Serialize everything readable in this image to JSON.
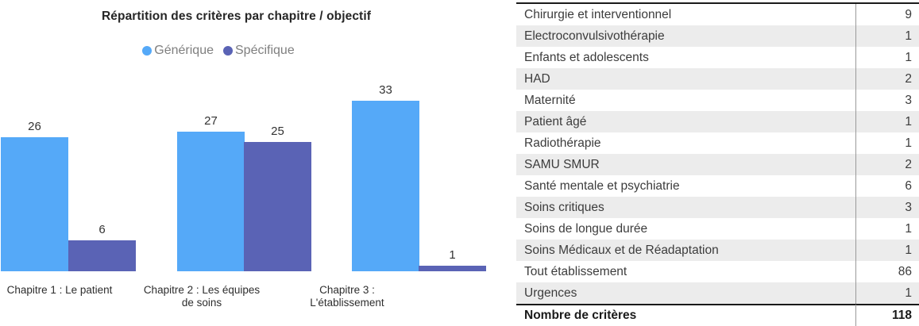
{
  "colors": {
    "generic_bar": "#55A9F8",
    "specific_bar": "#5A63B5",
    "row_alt": "#ECECEC",
    "table_border": "#1A1A1A",
    "column_divider": "#9A9A9A",
    "legend_text": "#7F7F7F"
  },
  "chart_data": [
    {
      "type": "bar",
      "title": "Répartition des critères par chapitre / objectif",
      "categories": [
        "Chapitre 1 : Le patient",
        "Chapitre 2 : Les équipes de soins",
        "Chapitre 3 : L'établissement"
      ],
      "category_lines": [
        [
          "Chapitre 1 : Le patient"
        ],
        [
          "Chapitre 2 : Les équipes",
          "de soins"
        ],
        [
          "Chapitre 3 :",
          "L'établissement"
        ]
      ],
      "series": [
        {
          "name": "Générique",
          "color": "#55A9F8",
          "values": [
            26,
            27,
            33
          ]
        },
        {
          "name": "Spécifique",
          "color": "#5A63B5",
          "values": [
            6,
            25,
            1
          ]
        }
      ],
      "legend_position": "top",
      "grid": false,
      "data_labels": true,
      "ylim": [
        0,
        35
      ],
      "xlabel": "",
      "ylabel": ""
    },
    {
      "type": "table",
      "rows": [
        {
          "label": "Chirurgie et interventionnel",
          "value": 9
        },
        {
          "label": "Electroconvulsivothérapie",
          "value": 1
        },
        {
          "label": "Enfants et adolescents",
          "value": 1
        },
        {
          "label": "HAD",
          "value": 2
        },
        {
          "label": "Maternité",
          "value": 3
        },
        {
          "label": "Patient âgé",
          "value": 1
        },
        {
          "label": "Radiothérapie",
          "value": 1
        },
        {
          "label": "SAMU SMUR",
          "value": 2
        },
        {
          "label": "Santé mentale et psychiatrie",
          "value": 6
        },
        {
          "label": "Soins critiques",
          "value": 3
        },
        {
          "label": "Soins de longue durée",
          "value": 1
        },
        {
          "label": "Soins Médicaux et de Réadaptation",
          "value": 1
        },
        {
          "label": "Tout établissement",
          "value": 86
        },
        {
          "label": "Urgences",
          "value": 1
        }
      ],
      "total_row": {
        "label": "Nombre de critères",
        "value": 118
      }
    }
  ]
}
